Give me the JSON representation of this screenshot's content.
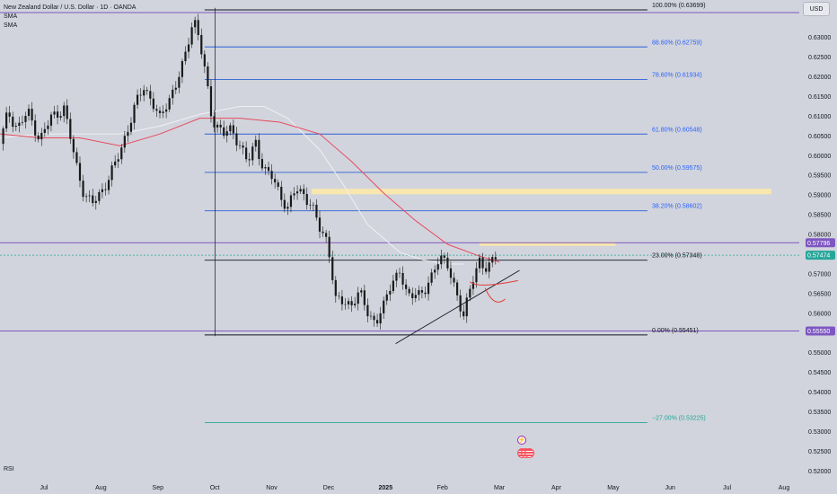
{
  "header": {
    "symbol_title": "New Zealand Dollar / U.S. Dollar · 1D · OANDA",
    "indicators": [
      "SMA",
      "SMA"
    ],
    "currency_button": "USD"
  },
  "footer": {
    "rsi_label": "RSI"
  },
  "icons": {
    "event": "lightning-icon",
    "flag": "us-flag-icon"
  },
  "colors": {
    "background": "#d1d4dc",
    "candle": "#1a1a1a",
    "sma_slow": "#e84a5f",
    "sma_fast": "#f0f0f5",
    "fib_line": "#2e5fd8",
    "fib_text": "#2962ff",
    "fib_anchor_line": "#131722",
    "fib_extension": "#26a69a",
    "horizontal_ray": "#7e57c2",
    "price_badge": "#26a69a",
    "zone": "#fce9a8"
  },
  "chart_data": {
    "type": "candlestick",
    "title": "New Zealand Dollar / U.S. Dollar · 1D · OANDA",
    "ylim": [
      0.5187,
      0.6395
    ],
    "y_ticks": [
      "0.63000",
      "0.62500",
      "0.62000",
      "0.61500",
      "0.61000",
      "0.60500",
      "0.60000",
      "0.59500",
      "0.59000",
      "0.58500",
      "0.58000",
      "0.57500",
      "0.57000",
      "0.56500",
      "0.56000",
      "0.55500",
      "0.55000",
      "0.54500",
      "0.54000",
      "0.53500",
      "0.53000",
      "0.52500",
      "0.52000"
    ],
    "x_ticks": [
      "Jul",
      "Aug",
      "Sep",
      "Oct",
      "Nov",
      "Dec",
      "2025",
      "Feb",
      "Mar",
      "Apr",
      "May",
      "Jun",
      "Jul",
      "Aug"
    ],
    "x_tick_bold": "2025",
    "price_path": [
      [
        0.0,
        0.603
      ],
      [
        0.01,
        0.611
      ],
      [
        0.022,
        0.607
      ],
      [
        0.035,
        0.611
      ],
      [
        0.05,
        0.604
      ],
      [
        0.065,
        0.61
      ],
      [
        0.08,
        0.612
      ],
      [
        0.095,
        0.598
      ],
      [
        0.105,
        0.5905
      ],
      [
        0.115,
        0.5875
      ],
      [
        0.13,
        0.592
      ],
      [
        0.145,
        0.598
      ],
      [
        0.16,
        0.607
      ],
      [
        0.17,
        0.613
      ],
      [
        0.18,
        0.6175
      ],
      [
        0.19,
        0.614
      ],
      [
        0.2,
        0.609
      ],
      [
        0.21,
        0.614
      ],
      [
        0.22,
        0.618
      ],
      [
        0.23,
        0.6235
      ],
      [
        0.24,
        0.6335
      ],
      [
        0.245,
        0.634
      ],
      [
        0.255,
        0.623
      ],
      [
        0.265,
        0.6095
      ],
      [
        0.28,
        0.6055
      ],
      [
        0.29,
        0.6065
      ],
      [
        0.3,
        0.603
      ],
      [
        0.31,
        0.598
      ],
      [
        0.32,
        0.6035
      ],
      [
        0.33,
        0.5965
      ],
      [
        0.34,
        0.5945
      ],
      [
        0.35,
        0.5905
      ],
      [
        0.36,
        0.5865
      ],
      [
        0.37,
        0.5915
      ],
      [
        0.38,
        0.5905
      ],
      [
        0.39,
        0.587
      ],
      [
        0.4,
        0.5815
      ],
      [
        0.41,
        0.5785
      ],
      [
        0.42,
        0.563
      ],
      [
        0.43,
        0.563
      ],
      [
        0.44,
        0.5625
      ],
      [
        0.45,
        0.565
      ],
      [
        0.46,
        0.5605
      ],
      [
        0.47,
        0.5575
      ],
      [
        0.48,
        0.5615
      ],
      [
        0.49,
        0.5685
      ],
      [
        0.5,
        0.5705
      ],
      [
        0.51,
        0.5635
      ],
      [
        0.52,
        0.566
      ],
      [
        0.53,
        0.5645
      ],
      [
        0.54,
        0.569
      ],
      [
        0.55,
        0.5755
      ],
      [
        0.56,
        0.5715
      ],
      [
        0.57,
        0.5655
      ],
      [
        0.58,
        0.56
      ],
      [
        0.59,
        0.567
      ],
      [
        0.6,
        0.5735
      ],
      [
        0.61,
        0.5715
      ],
      [
        0.62,
        0.574
      ]
    ],
    "sma_slow": [
      [
        0.0,
        0.6055
      ],
      [
        0.05,
        0.6045
      ],
      [
        0.1,
        0.6045
      ],
      [
        0.15,
        0.6025
      ],
      [
        0.2,
        0.6055
      ],
      [
        0.25,
        0.6095
      ],
      [
        0.3,
        0.6095
      ],
      [
        0.35,
        0.6085
      ],
      [
        0.4,
        0.6055
      ],
      [
        0.44,
        0.5985
      ],
      [
        0.48,
        0.5905
      ],
      [
        0.52,
        0.5835
      ],
      [
        0.56,
        0.5775
      ],
      [
        0.6,
        0.5745
      ],
      [
        0.625,
        0.573
      ]
    ],
    "sma_fast": [
      [
        0.0,
        0.6045
      ],
      [
        0.05,
        0.6055
      ],
      [
        0.1,
        0.6055
      ],
      [
        0.15,
        0.6055
      ],
      [
        0.2,
        0.6075
      ],
      [
        0.25,
        0.6105
      ],
      [
        0.3,
        0.6125
      ],
      [
        0.33,
        0.6125
      ],
      [
        0.36,
        0.6095
      ],
      [
        0.4,
        0.6015
      ],
      [
        0.43,
        0.5925
      ],
      [
        0.46,
        0.5825
      ],
      [
        0.5,
        0.5755
      ],
      [
        0.53,
        0.5735
      ],
      [
        0.56,
        0.5725
      ],
      [
        0.58,
        0.5725
      ]
    ],
    "fibonacci": [
      {
        "label": "100.00% (0.63699)",
        "price": 0.63699,
        "tone": "anchor"
      },
      {
        "label": "88.60% (0.62759)",
        "price": 0.62759,
        "tone": "fib"
      },
      {
        "label": "78.60% (0.61934)",
        "price": 0.61934,
        "tone": "fib"
      },
      {
        "label": "61.80% (0.60548)",
        "price": 0.60548,
        "tone": "fib"
      },
      {
        "label": "50.00% (0.59575)",
        "price": 0.59575,
        "tone": "fib"
      },
      {
        "label": "38.20% (0.58602)",
        "price": 0.58602,
        "tone": "fib"
      },
      {
        "label": "23.00% (0.57348)",
        "price": 0.57348,
        "tone": "anchor"
      },
      {
        "label": "0.00% (0.55451)",
        "price": 0.55451,
        "tone": "anchor"
      },
      {
        "label": "−27.00% (0.53225)",
        "price": 0.53225,
        "tone": "extension"
      }
    ],
    "horizontal_rays": [
      {
        "price": 0.6363,
        "badge": ""
      },
      {
        "price": 0.5779,
        "badge": "0.57796"
      },
      {
        "price": 0.5555,
        "badge": "0.55550"
      }
    ],
    "last_price": {
      "price": 0.57474,
      "label": "0.57474"
    },
    "resistance_zone": {
      "low": 0.5902,
      "high": 0.5916
    },
    "trendline": {
      "from": [
        0.495,
        0.5523
      ],
      "to": [
        0.65,
        0.5709
      ]
    }
  }
}
